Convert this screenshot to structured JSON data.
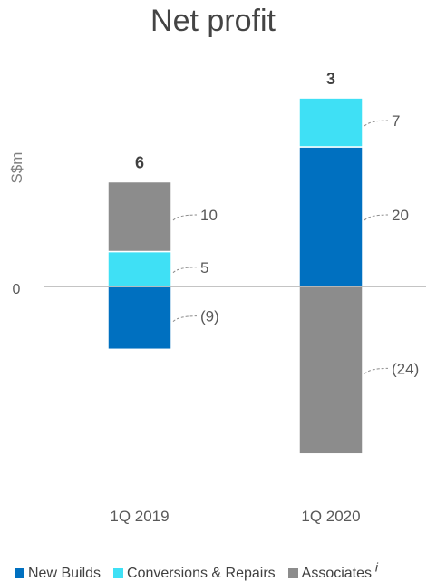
{
  "chart_data": {
    "type": "bar",
    "stacked": true,
    "title": "Net profit",
    "ylabel": "S$m",
    "ylim": [
      -27,
      30
    ],
    "categories": [
      "1Q 2019",
      "1Q 2020"
    ],
    "totals": [
      "6",
      "3"
    ],
    "zero_label": "0",
    "series": [
      {
        "name": "New Builds",
        "values": [
          -9,
          20
        ],
        "labels": [
          "(9)",
          "20"
        ],
        "color": "#0070C0"
      },
      {
        "name": "Conversions & Repairs",
        "values": [
          5,
          7
        ],
        "labels": [
          "5",
          "7"
        ],
        "color": "#3FE0F5"
      },
      {
        "name": "Associates",
        "values": [
          10,
          -24
        ],
        "labels": [
          "10",
          "(24)"
        ],
        "color": "#8C8C8C"
      }
    ],
    "legend_position": "bottom",
    "legend_note": "i",
    "grid": false
  }
}
